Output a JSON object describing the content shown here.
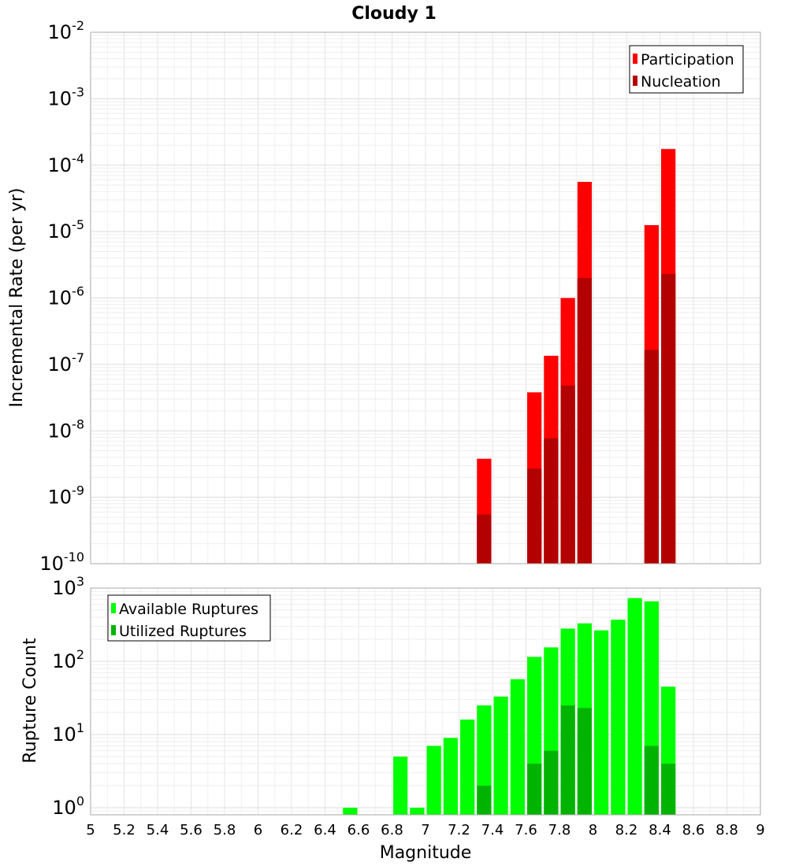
{
  "title": "Cloudy 1",
  "chart_data": [
    {
      "type": "bar",
      "title": "Cloudy 1",
      "xlabel": "Magnitude",
      "ylabel": "Incremental Rate (per yr)",
      "y_scale": "log",
      "ylim": [
        1e-10,
        0.01
      ],
      "xlim": [
        5,
        9
      ],
      "grid": true,
      "legend_position": "top-right",
      "x": [
        7.35,
        7.65,
        7.75,
        7.85,
        7.95,
        8.35,
        8.45
      ],
      "series": [
        {
          "name": "Participation",
          "color": "#ff0000",
          "values": [
            3.8e-09,
            3.8e-08,
            1.35e-07,
            1e-06,
            5.6e-05,
            1.25e-05,
            0.000175
          ]
        },
        {
          "name": "Nucleation",
          "color": "#b30000",
          "values": [
            5.5e-10,
            2.7e-09,
            7.7e-09,
            4.8e-08,
            2e-06,
            1.65e-07,
            2.3e-06
          ]
        }
      ],
      "y_tick_exponents": [
        -10,
        -9,
        -8,
        -7,
        -6,
        -5,
        -4,
        -3,
        -2
      ]
    },
    {
      "type": "bar",
      "xlabel": "Magnitude",
      "ylabel": "Rupture Count",
      "y_scale": "log",
      "ylim": [
        0.8,
        1000
      ],
      "xlim": [
        5,
        9
      ],
      "grid": true,
      "legend_position": "top-left",
      "x": [
        6.55,
        6.85,
        6.95,
        7.05,
        7.15,
        7.25,
        7.35,
        7.45,
        7.55,
        7.65,
        7.75,
        7.85,
        7.95,
        8.05,
        8.15,
        8.25,
        8.35,
        8.45
      ],
      "series": [
        {
          "name": "Available Ruptures",
          "color": "#00ff00",
          "values": [
            1,
            5,
            1,
            7,
            9,
            16,
            25,
            33,
            57,
            115,
            155,
            280,
            330,
            265,
            370,
            730,
            660,
            45
          ]
        },
        {
          "name": "Utilized Ruptures",
          "color": "#00b300",
          "values": [
            null,
            null,
            null,
            null,
            null,
            null,
            2,
            null,
            null,
            4,
            6,
            25,
            23,
            null,
            null,
            null,
            7,
            4
          ]
        }
      ],
      "y_tick_exponents": [
        0,
        1,
        2,
        3
      ],
      "x_ticks": [
        "5",
        "5.2",
        "5.4",
        "5.6",
        "5.8",
        "6",
        "6.2",
        "6.4",
        "6.6",
        "6.8",
        "7",
        "7.2",
        "7.4",
        "7.6",
        "7.8",
        "8",
        "8.2",
        "8.4",
        "8.6",
        "8.8",
        "9"
      ]
    }
  ]
}
